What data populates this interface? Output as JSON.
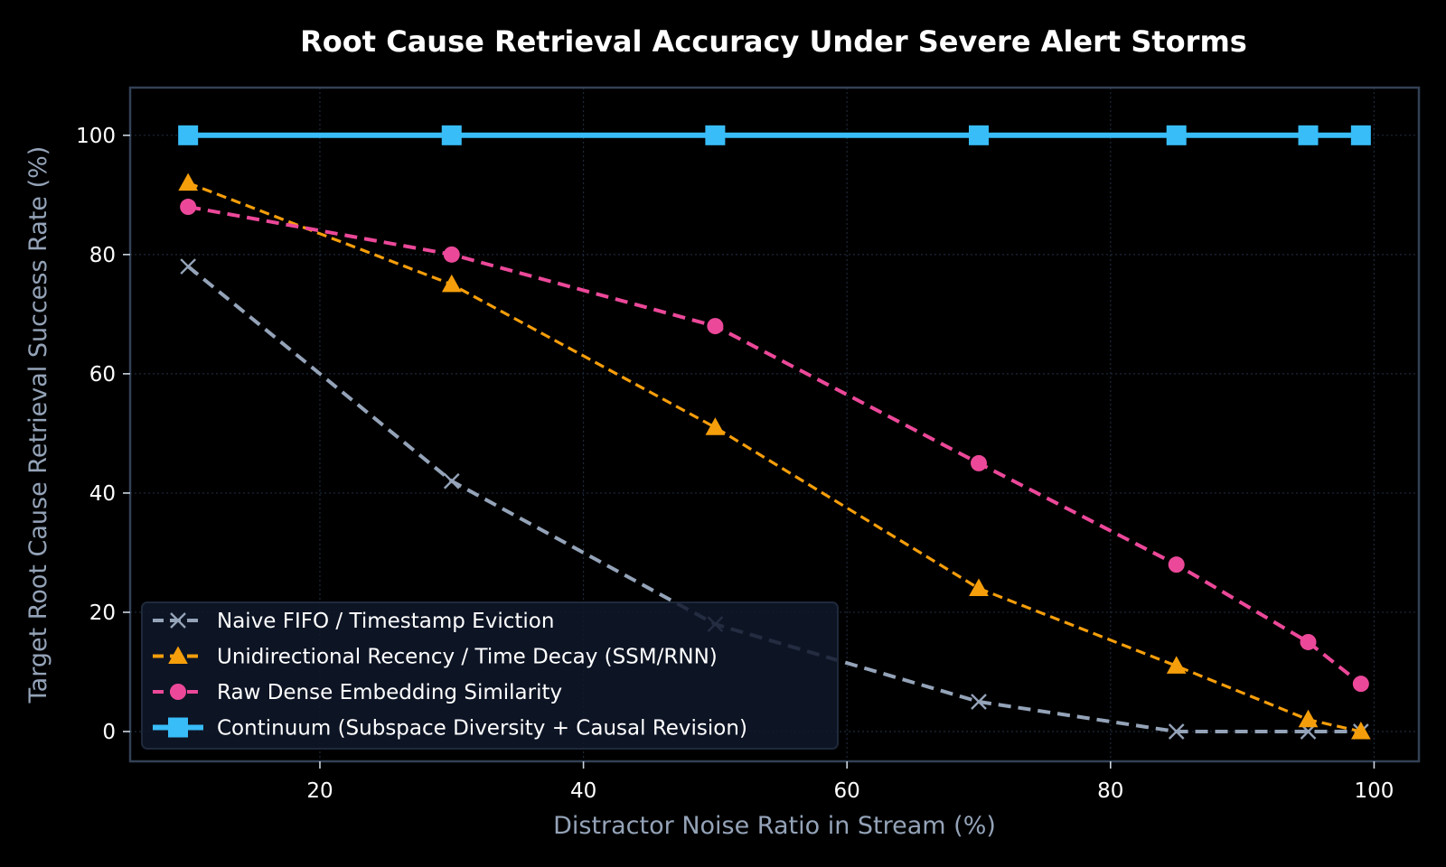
{
  "chart_data": {
    "type": "line",
    "title": "Root Cause Retrieval Accuracy Under Severe Alert Storms",
    "xlabel": "Distractor Noise Ratio in Stream (%)",
    "ylabel": "Target Root Cause Retrieval Success Rate (%)",
    "xlim": [
      5.6,
      103.4
    ],
    "ylim": [
      -5,
      108
    ],
    "xticks": [
      20,
      40,
      60,
      80,
      100
    ],
    "yticks": [
      0,
      20,
      40,
      60,
      80,
      100
    ],
    "x": [
      10,
      30,
      50,
      70,
      85,
      95,
      99
    ],
    "grid": true,
    "legend_position": "lower-left",
    "series": [
      {
        "name": "Naive FIFO / Timestamp Eviction",
        "values": [
          78,
          42,
          18,
          5,
          0,
          0,
          0
        ],
        "color": "#94a3b8",
        "marker": "x",
        "style": "dashed"
      },
      {
        "name": "Unidirectional Recency / Time Decay (SSM/RNN)",
        "values": [
          92,
          75,
          51,
          24,
          11,
          2,
          0
        ],
        "color": "#f59e0b",
        "marker": "triangle",
        "style": "dashed"
      },
      {
        "name": "Raw Dense Embedding Similarity",
        "values": [
          88,
          80,
          68,
          45,
          28,
          15,
          8
        ],
        "color": "#ec4899",
        "marker": "circle",
        "style": "dashed"
      },
      {
        "name": "Continuum (Subspace Diversity + Causal Revision)",
        "values": [
          100,
          100,
          100,
          100,
          100,
          100,
          100
        ],
        "color": "#38bdf8",
        "marker": "square",
        "style": "solid"
      }
    ]
  }
}
